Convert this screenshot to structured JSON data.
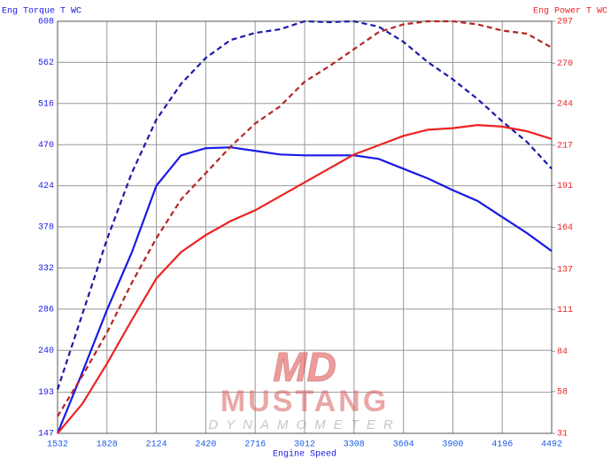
{
  "chart_data": {
    "type": "line",
    "y_label": "Eng Torque T WC",
    "y2_label": "Eng Power T WC",
    "x_label": "Engine Speed",
    "watermark": {
      "logo": "MD",
      "brand": "MUSTANG",
      "sub": "DYNAMOMETER"
    },
    "x": [
      1532,
      1680,
      1828,
      1976,
      2124,
      2272,
      2420,
      2568,
      2716,
      2864,
      3012,
      3160,
      3308,
      3456,
      3604,
      3752,
      3900,
      4048,
      4196,
      4344,
      4492
    ],
    "xlim": [
      1532,
      4492
    ],
    "xticks": [
      1532,
      1828,
      2124,
      2420,
      2716,
      3012,
      3308,
      3604,
      3900,
      4196,
      4492
    ],
    "ylim": [
      147,
      608
    ],
    "yticks": [
      147,
      193,
      240,
      286,
      332,
      378,
      424,
      470,
      516,
      562,
      608
    ],
    "y2lim": [
      31,
      297
    ],
    "y2ticks": [
      31,
      58,
      84,
      111,
      137,
      164,
      191,
      217,
      244,
      270,
      297
    ],
    "grid": true,
    "series": [
      {
        "color": "#1a1ae6",
        "style": "solid",
        "values": [
          147,
          215,
          285,
          349,
          424,
          458,
          466,
          467,
          463,
          459,
          458,
          458,
          458,
          454,
          443,
          432,
          419,
          407,
          389,
          371,
          351
        ]
      },
      {
        "color": "#1a1aa8",
        "style": "dashed",
        "values": [
          196,
          280,
          364,
          438,
          498,
          538,
          567,
          587,
          595,
          599,
          608,
          607,
          608,
          602,
          585,
          562,
          543,
          521,
          496,
          473,
          443
        ]
      },
      {
        "color": "#ee2222",
        "style": "solid",
        "axis": "y2",
        "values": [
          31,
          50,
          76,
          104,
          131,
          148,
          159,
          168,
          175,
          184,
          193,
          202,
          211,
          217,
          223,
          227,
          228,
          230,
          229,
          226,
          221
        ]
      },
      {
        "color": "#b52525",
        "style": "dashed",
        "axis": "y2",
        "values": [
          42,
          68,
          96,
          128,
          157,
          182,
          199,
          216,
          231,
          242,
          258,
          268,
          279,
          290,
          295,
          297,
          297,
          295,
          291,
          289,
          280
        ]
      }
    ]
  }
}
